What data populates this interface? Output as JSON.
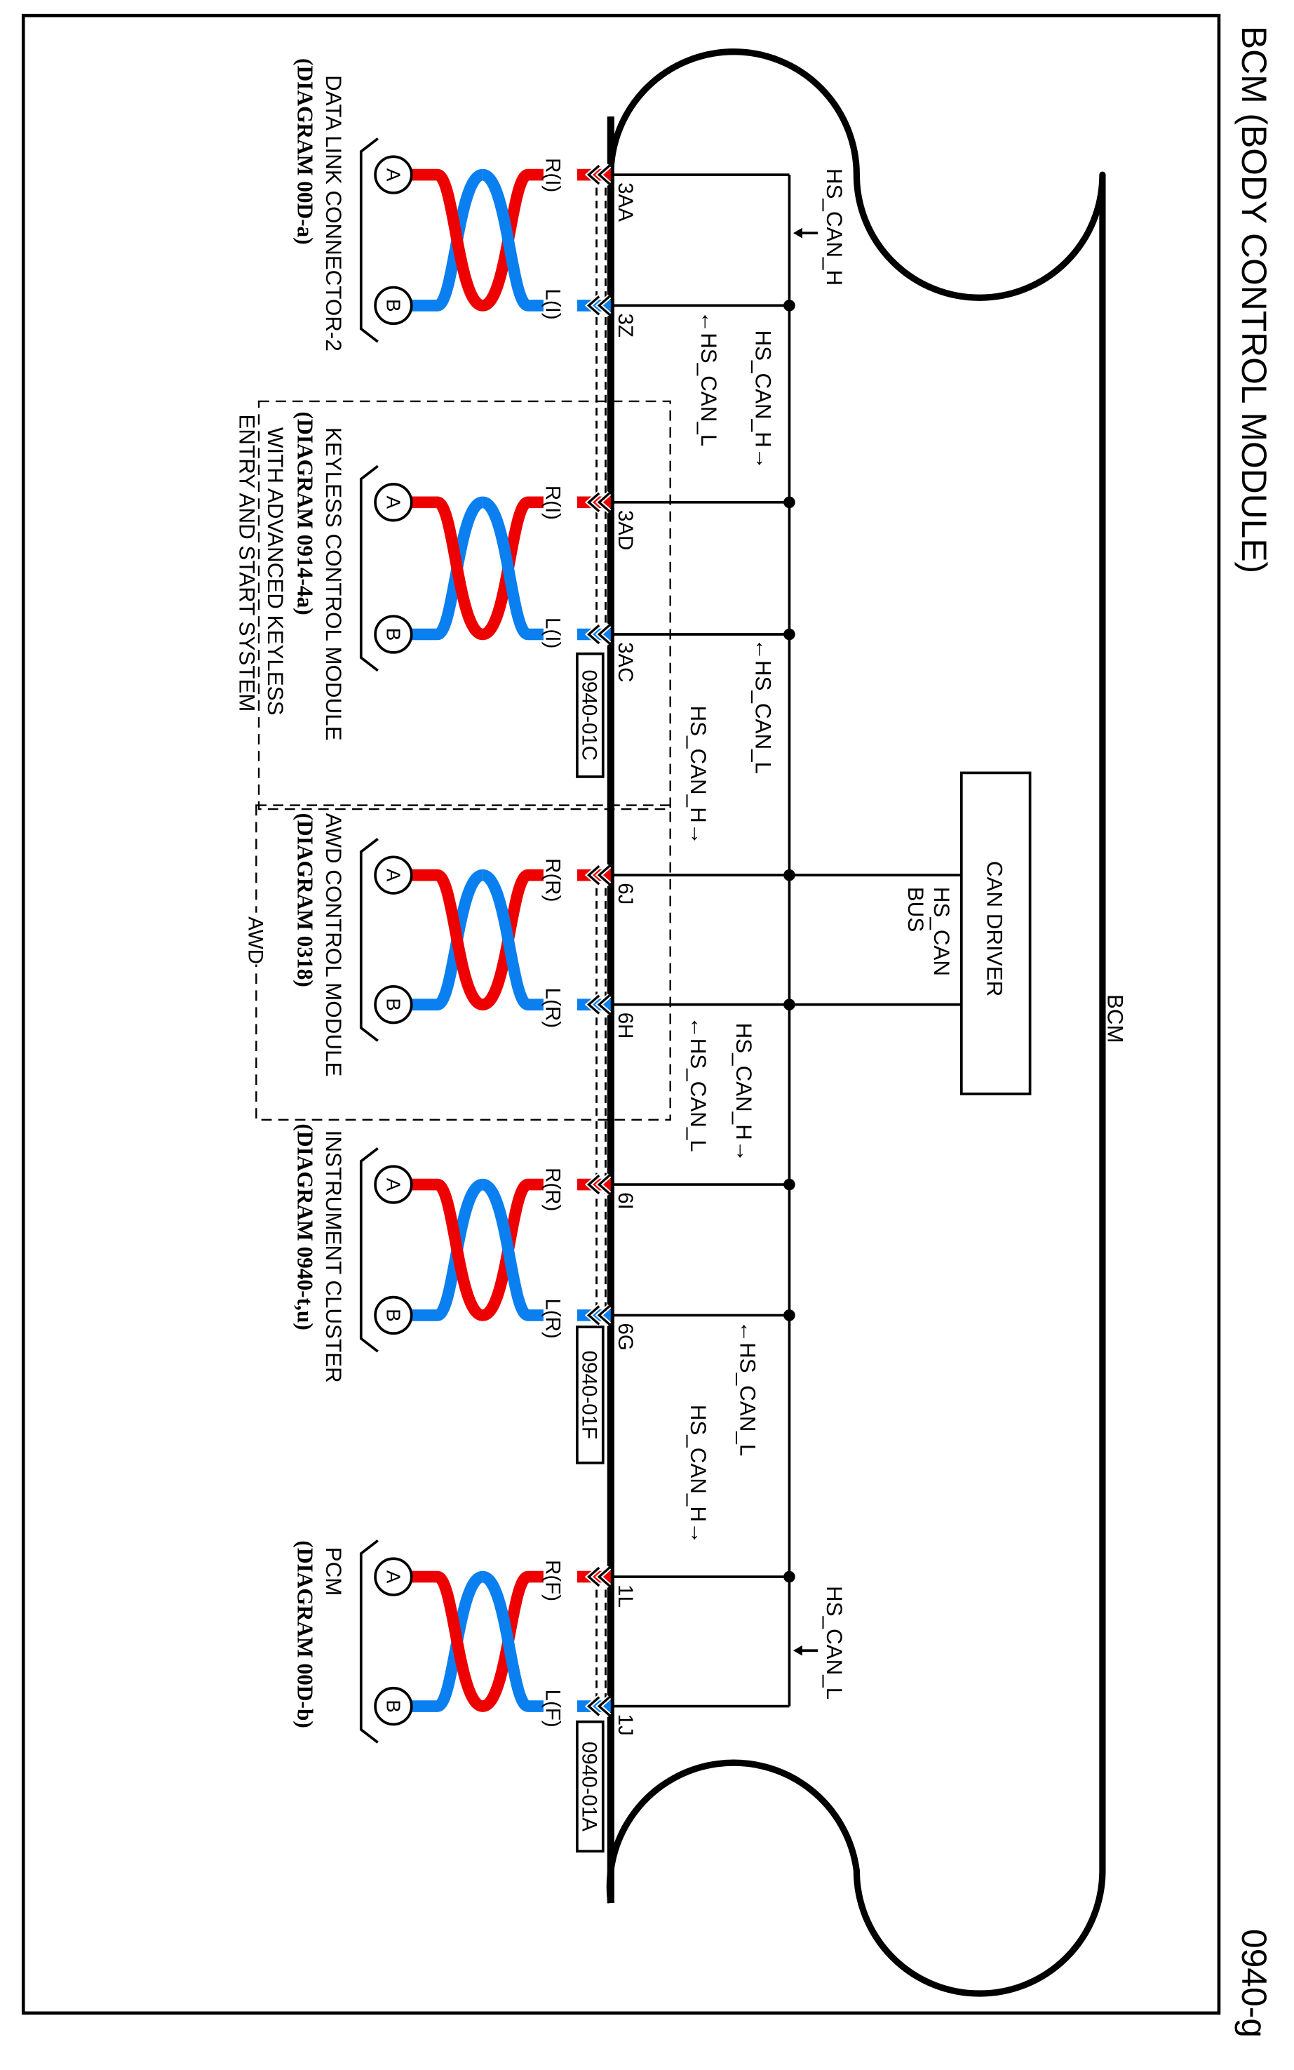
{
  "title": "BCM (BODY CONTROL MODULE)",
  "page_code": "0940-g",
  "bcm_label": "BCM",
  "can_driver": {
    "label": "CAN DRIVER",
    "bus_line1": "HS_CAN",
    "bus_line2": "BUS"
  },
  "colors": {
    "can_h_wire": "#ee0000",
    "can_l_wire": "#0a7ff0",
    "line": "#000000"
  },
  "pins": [
    "3AA",
    "3Z",
    "3AD",
    "3AC",
    "6J",
    "6H",
    "6I",
    "6G",
    "1L",
    "1J"
  ],
  "signals": [
    {
      "label": "HS_CAN_H",
      "arrow": "side"
    },
    {
      "label": "HS_CAN_H",
      "arrow": "end"
    },
    {
      "label": "HS_CAN_L",
      "arrow": "start"
    },
    {
      "label": "HS_CAN_L",
      "arrow": "start"
    },
    {
      "label": "HS_CAN_H",
      "arrow": "end"
    },
    {
      "label": "HS_CAN_L",
      "arrow": "start"
    },
    {
      "label": "HS_CAN_H",
      "arrow": "end"
    },
    {
      "label": "HS_CAN_L",
      "arrow": "start"
    },
    {
      "label": "HS_CAN_H",
      "arrow": "end"
    },
    {
      "label": "HS_CAN_L",
      "arrow": "side"
    }
  ],
  "modules": [
    {
      "name_lines": [
        "DATA LINK CONNECTOR-2"
      ],
      "diagram_lines": [
        "(DIAGRAM 00D-a)"
      ],
      "pin_r": "R(I)",
      "pin_l": "L(I)",
      "terminal_a": "A",
      "terminal_b": "B"
    },
    {
      "name_lines": [
        "KEYLESS CONTROL MODULE"
      ],
      "diagram_lines": [
        "(DIAGRAM 0914-4a)"
      ],
      "extra_lines": [
        "WITH ADVANCED KEYLESS",
        "ENTRY AND START SYSTEM"
      ],
      "pin_r": "R(I)",
      "pin_l": "L(I)",
      "terminal_a": "A",
      "terminal_b": "B"
    },
    {
      "name_lines": [
        "AWD CONTROL MODULE"
      ],
      "diagram_lines": [
        "(DIAGRAM 0318)"
      ],
      "pin_r": "R(R)",
      "pin_l": "L(R)",
      "terminal_a": "A",
      "terminal_b": "B"
    },
    {
      "name_lines": [
        "INSTRUMENT CLUSTER"
      ],
      "diagram_lines": [
        "(DIAGRAM 0940-t,u)"
      ],
      "pin_r": "R(R)",
      "pin_l": "L(R)",
      "terminal_a": "A",
      "terminal_b": "B"
    },
    {
      "name_lines": [
        "PCM"
      ],
      "diagram_lines": [
        "(DIAGRAM 00D-b)"
      ],
      "pin_r": "R(F)",
      "pin_l": "L(F)",
      "terminal_a": "A",
      "terminal_b": "B"
    }
  ],
  "ref_boxes": [
    "0940-01C",
    "0940-01F",
    "0940-01A"
  ],
  "option_label": "AWD"
}
